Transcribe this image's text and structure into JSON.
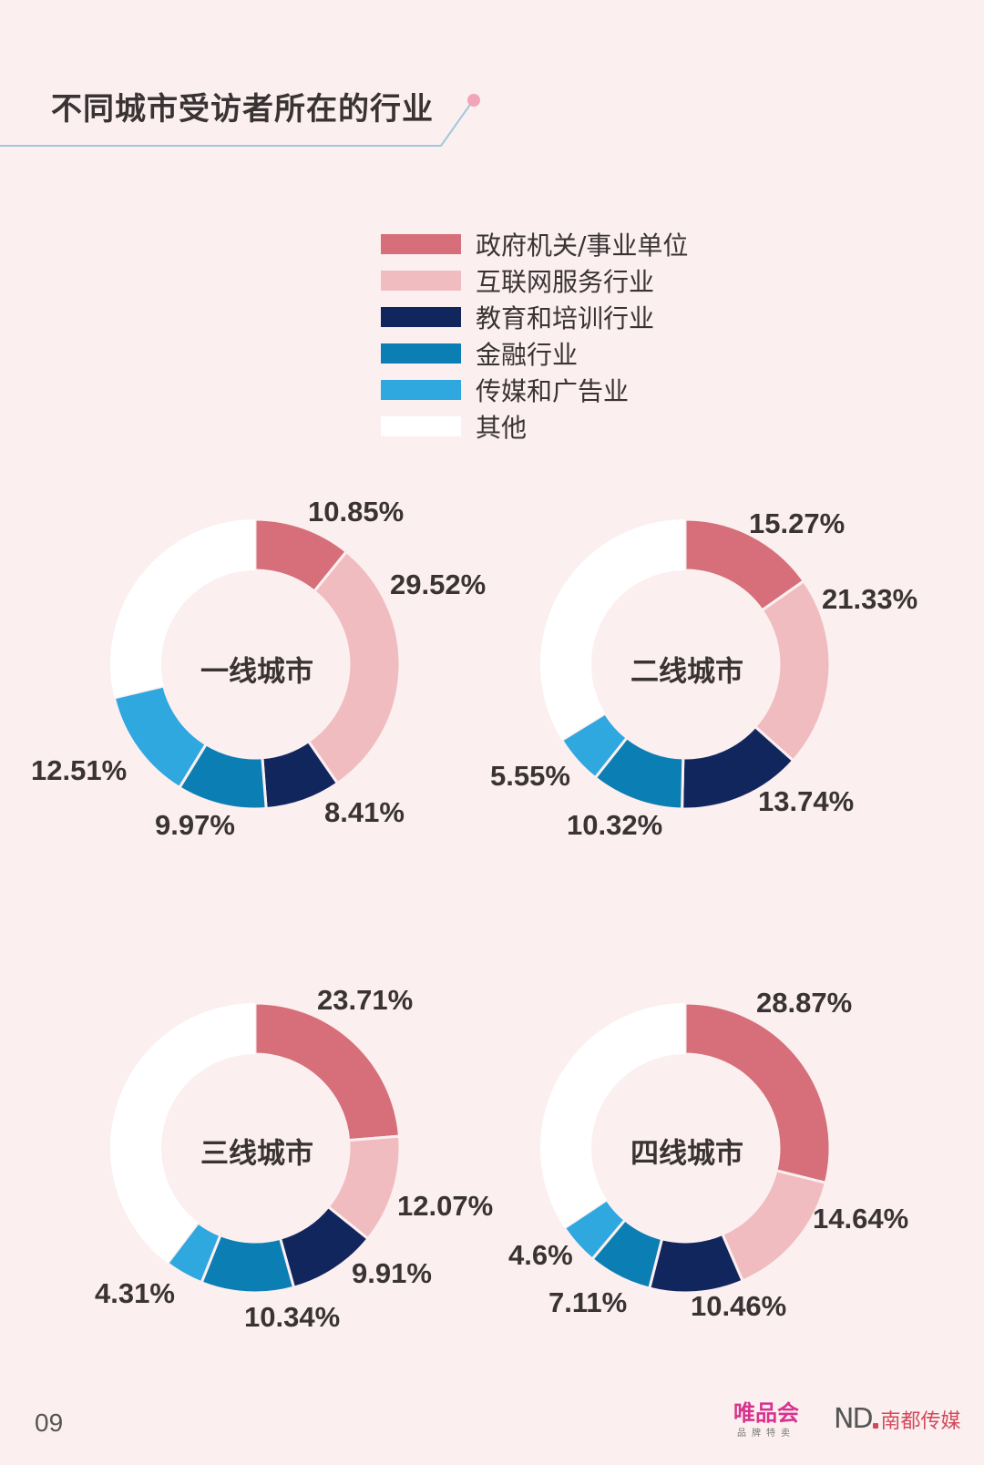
{
  "header": {
    "title": "不同城市受访者所在的行业"
  },
  "legend": {
    "items": [
      {
        "label": "政府机关/事业单位",
        "color": "#d66f79"
      },
      {
        "label": "互联网服务行业",
        "color": "#f0bcc0"
      },
      {
        "label": "教育和培训行业",
        "color": "#12265e"
      },
      {
        "label": "金融行业",
        "color": "#0b7fb4"
      },
      {
        "label": "传媒和广告业",
        "color": "#2fa7df"
      },
      {
        "label": "其他",
        "color": "#ffffff"
      }
    ]
  },
  "chart_data": [
    {
      "type": "pie",
      "title": "一线城市",
      "categories": [
        "政府机关/事业单位",
        "互联网服务行业",
        "教育和培训行业",
        "金融行业",
        "传媒和广告业",
        "其他"
      ],
      "values": [
        10.85,
        29.52,
        8.41,
        9.97,
        12.51,
        28.74
      ],
      "labels": [
        "10.85%",
        "29.52%",
        "8.41%",
        "9.97%",
        "12.51%",
        ""
      ]
    },
    {
      "type": "pie",
      "title": "二线城市",
      "categories": [
        "政府机关/事业单位",
        "互联网服务行业",
        "教育和培训行业",
        "金融行业",
        "传媒和广告业",
        "其他"
      ],
      "values": [
        15.27,
        21.33,
        13.74,
        10.32,
        5.55,
        33.79
      ],
      "labels": [
        "15.27%",
        "21.33%",
        "13.74%",
        "10.32%",
        "5.55%",
        ""
      ]
    },
    {
      "type": "pie",
      "title": "三线城市",
      "categories": [
        "政府机关/事业单位",
        "互联网服务行业",
        "教育和培训行业",
        "金融行业",
        "传媒和广告业",
        "其他"
      ],
      "values": [
        23.71,
        12.07,
        9.91,
        10.34,
        4.31,
        39.66
      ],
      "labels": [
        "23.71%",
        "12.07%",
        "9.91%",
        "10.34%",
        "4.31%",
        ""
      ]
    },
    {
      "type": "pie",
      "title": "四线城市",
      "categories": [
        "政府机关/事业单位",
        "互联网服务行业",
        "教育和培训行业",
        "金融行业",
        "传媒和广告业",
        "其他"
      ],
      "values": [
        28.87,
        14.64,
        10.46,
        7.11,
        4.6,
        34.32
      ],
      "labels": [
        "28.87%",
        "14.64%",
        "10.46%",
        "7.11%",
        "4.6%",
        ""
      ]
    }
  ],
  "footer": {
    "page_number": "09",
    "logo_vip": "唯品会",
    "logo_vip_sub": "品牌特卖",
    "logo_nd_mark": "ND",
    "logo_nd_text": "南都传媒"
  }
}
